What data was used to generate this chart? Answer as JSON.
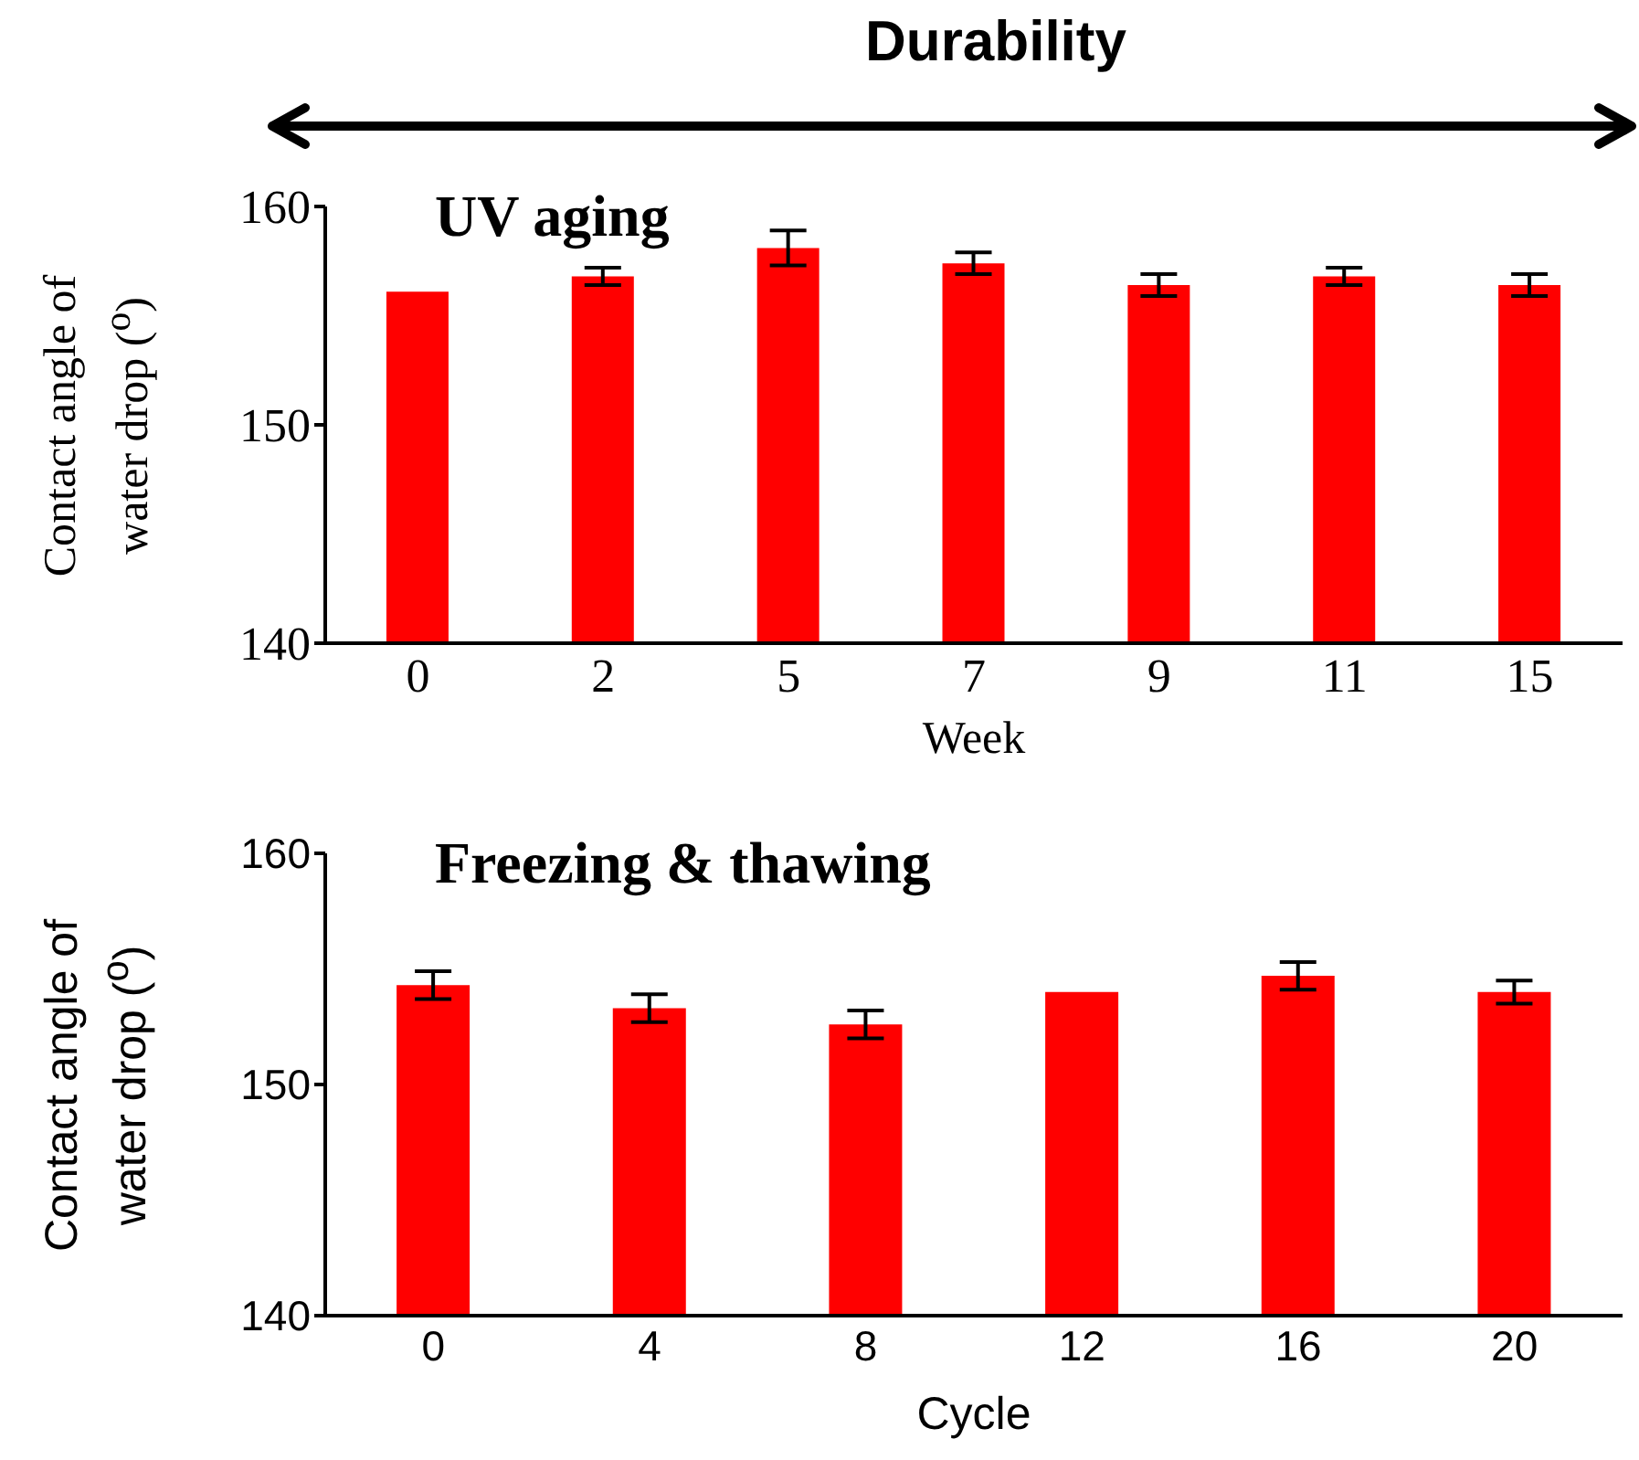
{
  "chart_data": [
    {
      "type": "bar",
      "title": "UV aging",
      "annotations": [
        "Durability"
      ],
      "xlabel": "Week",
      "ylabel": "Contact angle of water drop ($^{o}$)",
      "categories": [
        "0",
        "2",
        "5",
        "7",
        "9",
        "11",
        "15"
      ],
      "values": [
        156.1,
        156.8,
        158.1,
        157.4,
        156.4,
        156.8,
        156.4
      ],
      "errors": [
        0,
        0.4,
        0.8,
        0.5,
        0.5,
        0.4,
        0.5
      ],
      "color": "#ff0000",
      "ylim": [
        140,
        160
      ],
      "yticks": [
        140,
        150,
        160
      ]
    },
    {
      "type": "bar",
      "title": "Freezing & thawing",
      "xlabel": "Cycle",
      "ylabel": "Contact angle of water drop ($^{o}$)",
      "categories": [
        "0",
        "4",
        "8",
        "12",
        "16",
        "20"
      ],
      "values": [
        154.3,
        153.3,
        152.6,
        154.0,
        154.7,
        154.0
      ],
      "errors": [
        0.6,
        0.6,
        0.6,
        0,
        0.6,
        0.5
      ],
      "color": "#ff0000",
      "ylim": [
        140,
        160
      ],
      "yticks": [
        140,
        150,
        160
      ]
    }
  ]
}
